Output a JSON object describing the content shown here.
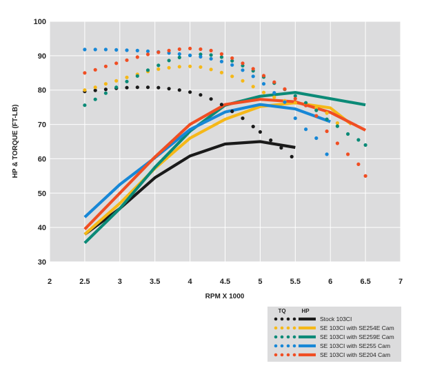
{
  "chart_data": {
    "type": "line",
    "title": "",
    "xlabel": "RPM X 1000",
    "ylabel": "HP & TORQUE (FT-LB)",
    "xlim": [
      2,
      7
    ],
    "ylim": [
      30,
      100
    ],
    "x_ticks": [
      "2",
      "2.5",
      "3",
      "3.5",
      "4",
      "4.5",
      "5",
      "5.5",
      "6",
      "6.5",
      "7"
    ],
    "y_ticks": [
      "30",
      "40",
      "50",
      "60",
      "70",
      "80",
      "90",
      "100"
    ],
    "grid": true,
    "legend": {
      "position": "bottom-right",
      "tq_label": "TQ",
      "hp_label": "HP",
      "entries": [
        {
          "name": "Stock 103CI",
          "color": "#1a1a1a"
        },
        {
          "name": "SE 103CI with SE254E Cam",
          "color": "#f5b818"
        },
        {
          "name": "SE 103CI with SE259E Cam",
          "color": "#0b8a77"
        },
        {
          "name": "SE 103CI with SE255 Cam",
          "color": "#1787d6"
        },
        {
          "name": "SE 103CI with SE204 Cam",
          "color": "#f04e23"
        }
      ]
    },
    "series": [
      {
        "name": "Stock 103CI",
        "color": "#1a1a1a",
        "tq": {
          "x": [
            2.5,
            2.65,
            2.8,
            2.95,
            3.1,
            3.25,
            3.4,
            3.55,
            3.7,
            3.85,
            4.0,
            4.15,
            4.3,
            4.45,
            4.6,
            4.75,
            4.9,
            5.0,
            5.15,
            5.3,
            5.45
          ],
          "y": [
            79.6,
            79.9,
            80.2,
            80.5,
            80.7,
            80.8,
            80.8,
            80.7,
            80.4,
            80.0,
            79.4,
            78.6,
            77.4,
            75.8,
            73.8,
            71.8,
            69.4,
            67.8,
            65.4,
            63.2,
            60.6
          ]
        },
        "hp": {
          "x": [
            2.5,
            3.0,
            3.5,
            4.0,
            4.5,
            5.0,
            5.5
          ],
          "y": [
            38,
            45.5,
            54.5,
            60.8,
            64.3,
            65,
            63.3
          ]
        }
      },
      {
        "name": "SE 103CI with SE254E Cam",
        "color": "#f5b818",
        "tq": {
          "x": [
            2.5,
            2.65,
            2.8,
            2.95,
            3.1,
            3.25,
            3.4,
            3.55,
            3.7,
            3.85,
            4.0,
            4.15,
            4.3,
            4.45,
            4.6,
            4.75,
            4.9,
            5.05,
            5.2,
            5.35,
            5.5,
            5.65,
            5.8,
            5.95,
            6.1
          ],
          "y": [
            80,
            80.8,
            81.8,
            82.7,
            83.7,
            84.6,
            85.4,
            86.1,
            86.5,
            86.8,
            86.9,
            86.7,
            86.0,
            85.1,
            84.0,
            82.7,
            81.0,
            79.3,
            77.9,
            76.9,
            76.3,
            75.9,
            74.9,
            73.3,
            70.4
          ]
        },
        "hp": {
          "x": [
            2.5,
            3.0,
            3.5,
            4.0,
            4.5,
            5.0,
            5.5,
            6.0,
            6.3
          ],
          "y": [
            38,
            47,
            57.2,
            66,
            71.5,
            75.2,
            76.3,
            74.8,
            70
          ]
        }
      },
      {
        "name": "SE 103CI with SE259E Cam",
        "color": "#0b8a77",
        "tq": {
          "x": [
            2.5,
            2.65,
            2.8,
            2.95,
            3.1,
            3.25,
            3.4,
            3.55,
            3.7,
            3.85,
            4.0,
            4.15,
            4.3,
            4.45,
            4.6,
            4.75,
            4.9,
            5.05,
            5.2,
            5.35,
            5.5,
            5.65,
            5.8,
            5.95,
            6.1,
            6.25,
            6.4,
            6.5
          ],
          "y": [
            75.6,
            77.3,
            79.1,
            80.8,
            82.5,
            84.1,
            85.8,
            87.2,
            88.6,
            89.5,
            90.1,
            90.4,
            90.2,
            89.6,
            88.5,
            87.1,
            85.6,
            83.8,
            82.0,
            80.2,
            78.3,
            76.3,
            74.1,
            71.5,
            69.5,
            67.2,
            65.5,
            64.0
          ]
        },
        "hp": {
          "x": [
            2.5,
            3.0,
            3.5,
            4.0,
            4.5,
            5.0,
            5.5,
            6.0,
            6.5
          ],
          "y": [
            35.5,
            45.5,
            57.5,
            68,
            75.6,
            78.2,
            79.3,
            77.5,
            75.7
          ]
        }
      },
      {
        "name": "SE 103CI with SE255 Cam",
        "color": "#1787d6",
        "tq": {
          "x": [
            2.5,
            2.65,
            2.8,
            2.95,
            3.1,
            3.25,
            3.4,
            3.55,
            3.7,
            3.85,
            4.0,
            4.15,
            4.3,
            4.45,
            4.6,
            4.75,
            4.9,
            5.05,
            5.2,
            5.35,
            5.5,
            5.65,
            5.8,
            5.95
          ],
          "y": [
            91.8,
            91.8,
            91.8,
            91.7,
            91.6,
            91.5,
            91.3,
            91.1,
            90.8,
            90.5,
            90.1,
            89.7,
            89.1,
            88.3,
            87.3,
            85.8,
            84.0,
            81.8,
            79.2,
            76.5,
            71.8,
            68.6,
            66.0,
            61.3
          ]
        },
        "hp": {
          "x": [
            2.5,
            3.0,
            3.5,
            4.0,
            4.5,
            5.0,
            5.5,
            6.0
          ],
          "y": [
            43,
            52.5,
            60.3,
            68.5,
            73.6,
            75.8,
            74.5,
            70.8
          ]
        }
      },
      {
        "name": "SE 103CI with SE204 Cam",
        "color": "#f04e23",
        "tq": {
          "x": [
            2.5,
            2.65,
            2.8,
            2.95,
            3.1,
            3.25,
            3.4,
            3.55,
            3.7,
            3.85,
            4.0,
            4.15,
            4.3,
            4.45,
            4.6,
            4.75,
            4.9,
            5.05,
            5.2,
            5.35,
            5.5,
            5.65,
            5.8,
            5.95,
            6.1,
            6.25,
            6.4,
            6.5
          ],
          "y": [
            85,
            85.9,
            86.9,
            87.8,
            88.7,
            89.6,
            90.4,
            91.0,
            91.5,
            91.9,
            92.1,
            91.9,
            91.5,
            90.5,
            89.3,
            87.8,
            86.2,
            84.2,
            82.3,
            80.3,
            77.5,
            75.5,
            72.5,
            68.0,
            64.5,
            61.3,
            58.4,
            55.0
          ]
        },
        "hp": {
          "x": [
            2.5,
            3.0,
            3.5,
            4.0,
            4.5,
            5.0,
            5.5,
            6.0,
            6.5
          ],
          "y": [
            39.5,
            50,
            60.5,
            70,
            75.8,
            77.3,
            76.6,
            73.5,
            68.3
          ]
        }
      }
    ]
  }
}
